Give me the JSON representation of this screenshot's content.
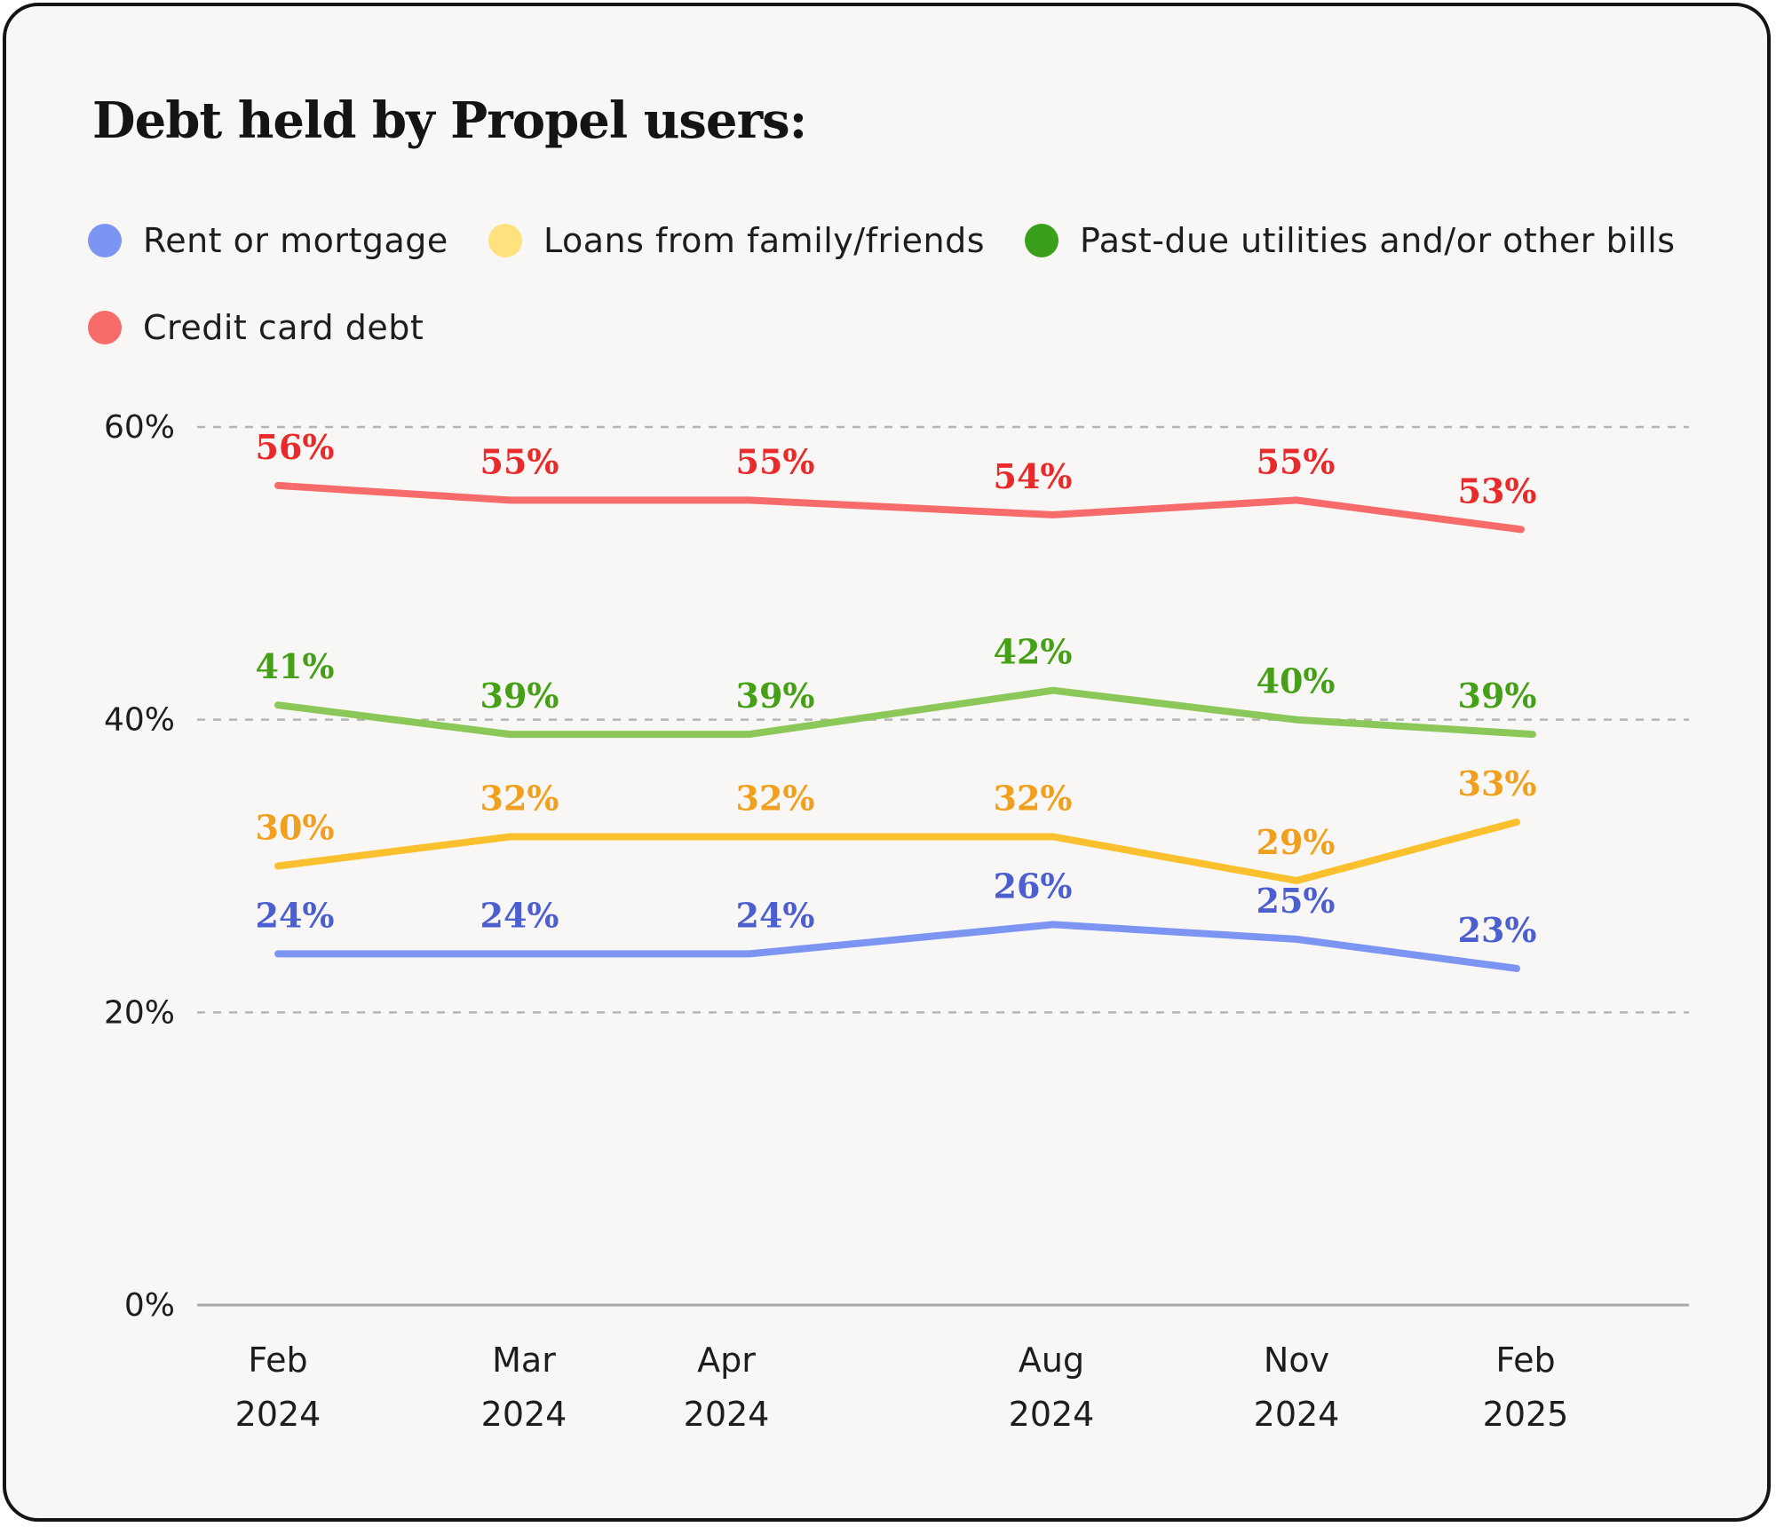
{
  "chart_data": {
    "type": "line",
    "title": "Debt held by Propel users:",
    "categories": [
      [
        "Feb",
        "2024"
      ],
      [
        "Mar",
        "2024"
      ],
      [
        "Apr",
        "2024"
      ],
      [
        "Aug",
        "2024"
      ],
      [
        "Nov",
        "2024"
      ],
      [
        "Feb",
        "2025"
      ]
    ],
    "ylim": [
      0,
      60
    ],
    "yticks": [
      "0%",
      "20%",
      "40%",
      "60%"
    ],
    "ytick_values": [
      0,
      20,
      40,
      60
    ],
    "grid": "dashed horizontal",
    "legend_position": "top-left",
    "xlabel": "",
    "ylabel": "",
    "series": [
      {
        "name": "Rent or mortgage",
        "values": [
          24,
          24,
          24,
          26,
          25,
          23
        ],
        "labels": [
          "24%",
          "24%",
          "24%",
          "26%",
          "25%",
          "23%"
        ],
        "color": "#7c95f2",
        "dot_color": "#7c95f2",
        "label_color": "#4c5fd0"
      },
      {
        "name": "Loans from family/friends",
        "values": [
          30,
          32,
          32,
          32,
          29,
          33
        ],
        "labels": [
          "30%",
          "32%",
          "32%",
          "32%",
          "29%",
          "33%"
        ],
        "color": "#fbc02d",
        "dot_color": "#ffe27e",
        "label_color": "#f0a01e"
      },
      {
        "name": "Past-due utilities and/or other bills",
        "values": [
          41,
          39,
          39,
          42,
          40,
          39
        ],
        "labels": [
          "41%",
          "39%",
          "39%",
          "42%",
          "40%",
          "39%"
        ],
        "color": "#8cc75a",
        "dot_color": "#3aa01c",
        "label_color": "#46a017"
      },
      {
        "name": "Credit card debt",
        "values": [
          56,
          55,
          55,
          54,
          55,
          53
        ],
        "labels": [
          "56%",
          "55%",
          "55%",
          "54%",
          "55%",
          "53%"
        ],
        "color": "#f76b6b",
        "dot_color": "#f76b6b",
        "label_color": "#e82a2a"
      }
    ]
  }
}
